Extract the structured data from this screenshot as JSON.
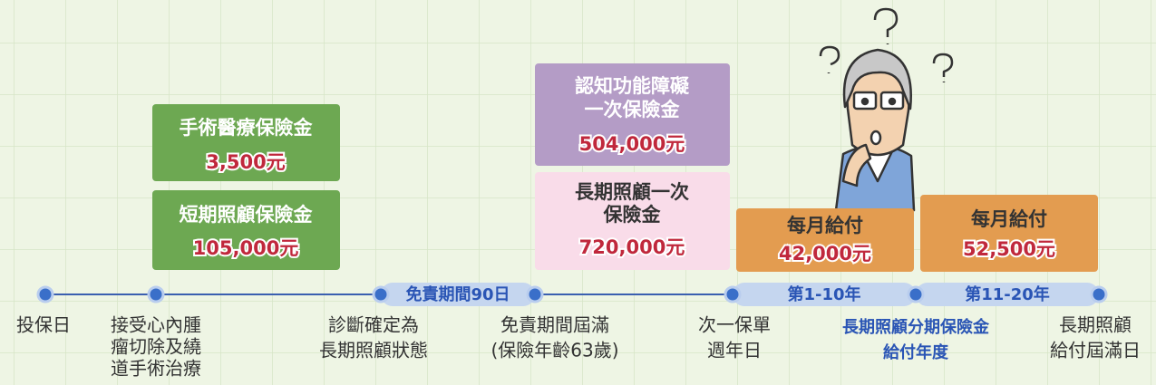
{
  "boxes": [
    {
      "title": [
        "手術醫療保險金"
      ],
      "amount": "3,500元"
    },
    {
      "title": [
        "短期照顧保險金"
      ],
      "amount": "105,000元"
    },
    {
      "title": [
        "認知功能障礙",
        "一次保險金"
      ],
      "amount": "504,000元"
    },
    {
      "title": [
        "長期照顧一次",
        "保險金"
      ],
      "amount": "720,000元"
    },
    {
      "title": [
        "每月給付"
      ],
      "amount": "42,000元"
    },
    {
      "title": [
        "每月給付"
      ],
      "amount": "52,500元"
    }
  ],
  "periods": [
    "免責期間90日",
    "第1-10年",
    "第11-20年"
  ],
  "milestones": [
    {
      "lines": [
        "投保日"
      ]
    },
    {
      "lines": [
        "接受心內腫",
        "瘤切除及繞",
        "道手術治療"
      ]
    },
    {
      "lines": [
        "診斷確定為",
        "長期照顧狀態"
      ]
    },
    {
      "lines": [
        "免責期間屆滿",
        "(保險年齡63歲)"
      ]
    },
    {
      "lines": [
        "次一保單",
        "週年日"
      ]
    },
    {
      "lines": [
        "長期照顧分期保險金",
        "給付年度"
      ]
    },
    {
      "lines": [
        "長期照顧",
        "給付屆滿日"
      ]
    }
  ]
}
